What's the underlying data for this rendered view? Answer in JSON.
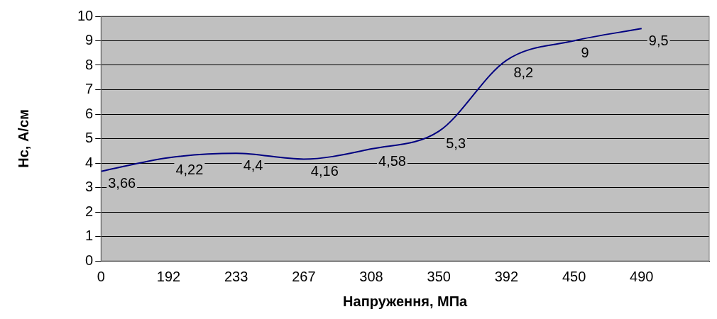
{
  "chart_data": {
    "type": "line",
    "xlabel": "Напруження, МПа",
    "ylabel": "Нс, А/см",
    "categories": [
      "0",
      "192",
      "233",
      "267",
      "308",
      "350",
      "392",
      "450",
      "490",
      null
    ],
    "series": [
      {
        "color": "#000080",
        "values": [
          3.66,
          4.22,
          4.4,
          4.16,
          4.58,
          5.3,
          8.2,
          9,
          9.5,
          null
        ],
        "value_labels": [
          "3,66",
          "4,22",
          "4,4",
          "4,16",
          "4,58",
          "5,3",
          "8,2",
          "9",
          "9,5",
          null
        ]
      }
    ],
    "ylim": [
      0,
      10
    ],
    "yticks": [
      0,
      1,
      2,
      3,
      4,
      5,
      6,
      7,
      8,
      9,
      10
    ],
    "grid": "y",
    "legend": false,
    "marker": "none"
  }
}
